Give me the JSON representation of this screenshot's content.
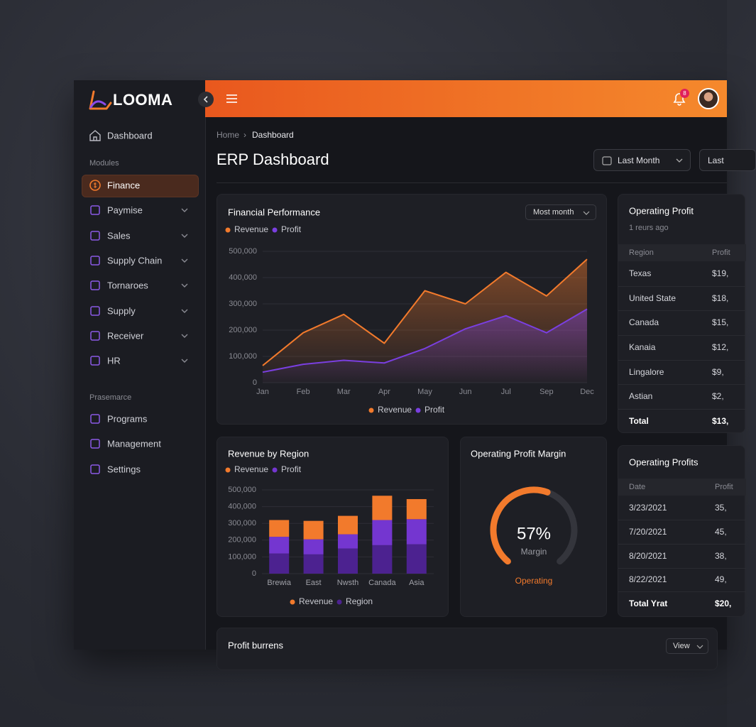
{
  "sidebar": {
    "logo": "LOOMA",
    "dashboard": "Dashboard",
    "sections": [
      {
        "title": "Modules",
        "items": [
          "Finance",
          "Paymise",
          "Sales",
          "Supply Chain",
          "Tornaroes",
          "Supply",
          "Receiver",
          "HR"
        ]
      },
      {
        "title": "Prasemarce",
        "items": [
          "Programs",
          "Management",
          "Settings"
        ]
      }
    ]
  },
  "topbar": {
    "notifications": "8"
  },
  "header": {
    "breadcrumb": [
      "Home",
      "Dashboard"
    ],
    "title": "ERP Dashboard",
    "filters": [
      "Last Month",
      "Last"
    ]
  },
  "financial_performance": {
    "type": "line",
    "title": "Financial Performance",
    "dropdown": "Most month",
    "categories": [
      "Jan",
      "Feb",
      "Mar",
      "Apr",
      "May",
      "Jun",
      "Jul",
      "Sep",
      "Dec"
    ],
    "series": [
      {
        "name": "Revenue",
        "color": "#f27a2c",
        "values": [
          65000,
          190000,
          260000,
          150000,
          350000,
          300000,
          420000,
          330000,
          470000
        ]
      },
      {
        "name": "Profit",
        "color": "#7a3fe0",
        "values": [
          40000,
          70000,
          85000,
          75000,
          130000,
          205000,
          255000,
          190000,
          280000
        ]
      }
    ],
    "ylim": [
      0,
      500000
    ],
    "yticks": [
      0,
      {
        "value": 100000,
        "label": "100,000"
      },
      {
        "value": 200000,
        "label": "200,000"
      },
      {
        "value": 300000,
        "label": "300,000"
      },
      {
        "value": 400000,
        "label": "400,000"
      },
      {
        "value": 500000,
        "label": "500,000"
      }
    ],
    "grid": true
  },
  "revenue_by_region": {
    "type": "stacked_bar",
    "title": "Revenue by Region",
    "categories": [
      "Brewia",
      "East",
      "Nwsth",
      "Canada",
      "Asia"
    ],
    "series": [
      {
        "name": "Region",
        "color": "#4c2290",
        "values": [
          120000,
          115000,
          150000,
          170000,
          175000
        ]
      },
      {
        "name": "Profit",
        "color": "#7436d0",
        "values": [
          100000,
          90000,
          85000,
          150000,
          150000
        ]
      },
      {
        "name": "Revenue",
        "color": "#f27a2c",
        "values": [
          100000,
          110000,
          110000,
          145000,
          120000
        ]
      }
    ],
    "ylim": [
      0,
      500000
    ],
    "yticks": [
      0,
      {
        "value": 100000,
        "label": "100,000"
      },
      {
        "value": 200000,
        "label": "200,000"
      },
      {
        "value": 300000,
        "label": "300,000"
      },
      {
        "value": 400000,
        "label": "400,000"
      },
      {
        "value": 500000,
        "label": "500,000"
      }
    ],
    "grid": true
  },
  "operating_profit_margin": {
    "type": "gauge",
    "title": "Operating Profit Margin",
    "value": 57,
    "value_label": "57%",
    "caption": "Margin",
    "status": "Operating",
    "color": "#f27a2c"
  },
  "operating_profit": {
    "title": "Operating Profit",
    "updated": "1 reurs ago",
    "columns": [
      "Region",
      "Profit"
    ],
    "rows": [
      [
        "Texas",
        "$19,"
      ],
      [
        "United State",
        "$18,"
      ],
      [
        "Canada",
        "$15,"
      ],
      [
        "Kanaia",
        "$12,"
      ],
      [
        "Lingalore",
        "$9,"
      ],
      [
        "Astian",
        "$2,"
      ],
      [
        "Total",
        "$13,"
      ]
    ]
  },
  "operating_profits": {
    "title": "Operating Profits",
    "columns": [
      "Date",
      "Profit"
    ],
    "rows": [
      [
        "3/23/2021",
        "35,"
      ],
      [
        "7/20/2021",
        "45,"
      ],
      [
        "8/20/2021",
        "38,"
      ],
      [
        "8/22/2021",
        "49,"
      ],
      [
        "Total Yrat",
        "$20,"
      ]
    ]
  },
  "profit_panel": {
    "title": "Profit burrens",
    "button": "View"
  }
}
